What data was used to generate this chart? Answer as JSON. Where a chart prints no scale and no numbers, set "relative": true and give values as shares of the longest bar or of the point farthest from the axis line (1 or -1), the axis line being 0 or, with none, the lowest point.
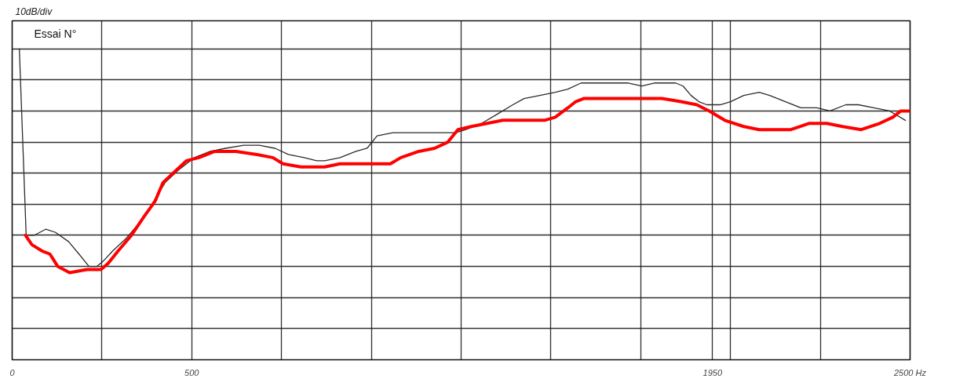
{
  "chart_data": {
    "type": "line",
    "ylabel": "10dB/div",
    "annotations": [
      "Essai N°"
    ],
    "relative": true,
    "grid": true,
    "line_style": "solid",
    "xlim": [
      0,
      2500
    ],
    "xticks": [
      0,
      {
        "value": 250,
        "label": null
      },
      500,
      {
        "value": 750,
        "label": null
      },
      {
        "value": 1000,
        "label": null
      },
      {
        "value": 1250,
        "label": null
      },
      {
        "value": 1500,
        "label": null
      },
      {
        "value": 1750,
        "label": null
      },
      1950,
      {
        "value": 2000,
        "label": null
      },
      {
        "value": 2250,
        "label": null
      },
      {
        "value": 2500,
        "label": "2500 Hz"
      }
    ],
    "series": [
      {
        "color": "#2b2b2b",
        "x": [
          20,
          39,
          61,
          94,
          120,
          157,
          186,
          214,
          236,
          256,
          280,
          317,
          354,
          389,
          426,
          463,
          507,
          551,
          594,
          645,
          688,
          732,
          769,
          813,
          848,
          870,
          913,
          957,
          988,
          1016,
          1060,
          1119,
          1163,
          1191,
          1235,
          1263,
          1307,
          1351,
          1394,
          1425,
          1469,
          1512,
          1547,
          1584,
          1628,
          1687,
          1715,
          1753,
          1788,
          1847,
          1868,
          1890,
          1912,
          1934,
          1971,
          2000,
          2037,
          2080,
          2109,
          2153,
          2196,
          2240,
          2277,
          2321,
          2356,
          2399,
          2443,
          2487
        ],
        "values": [
          1.0,
          0.4,
          0.4,
          0.42,
          0.41,
          0.38,
          0.34,
          0.3,
          0.3,
          0.32,
          0.35,
          0.39,
          0.44,
          0.5,
          0.57,
          0.61,
          0.65,
          0.67,
          0.68,
          0.69,
          0.69,
          0.68,
          0.66,
          0.65,
          0.64,
          0.64,
          0.65,
          0.67,
          0.68,
          0.72,
          0.73,
          0.73,
          0.73,
          0.73,
          0.73,
          0.74,
          0.76,
          0.79,
          0.82,
          0.84,
          0.85,
          0.86,
          0.87,
          0.89,
          0.89,
          0.89,
          0.89,
          0.88,
          0.89,
          0.89,
          0.88,
          0.85,
          0.83,
          0.82,
          0.82,
          0.83,
          0.85,
          0.86,
          0.85,
          0.83,
          0.81,
          0.81,
          0.8,
          0.82,
          0.82,
          0.81,
          0.8,
          0.77
        ]
      },
      {
        "color": "#ff0000",
        "x": [
          37,
          55,
          83,
          105,
          116,
          127,
          160,
          208,
          247,
          267,
          295,
          332,
          367,
          398,
          420,
          448,
          485,
          520,
          564,
          623,
          682,
          726,
          754,
          804,
          870,
          913,
          988,
          1053,
          1082,
          1132,
          1176,
          1213,
          1241,
          1278,
          1322,
          1366,
          1425,
          1482,
          1512,
          1547,
          1569,
          1591,
          1643,
          1694,
          1753,
          1809,
          1862,
          1906,
          1941,
          1984,
          2037,
          2080,
          2115,
          2168,
          2218,
          2268,
          2312,
          2364,
          2415,
          2452,
          2474,
          2496
        ],
        "values": [
          0.4,
          0.37,
          0.35,
          0.34,
          0.32,
          0.3,
          0.28,
          0.29,
          0.29,
          0.31,
          0.35,
          0.4,
          0.46,
          0.51,
          0.57,
          0.6,
          0.64,
          0.65,
          0.67,
          0.67,
          0.66,
          0.65,
          0.63,
          0.62,
          0.62,
          0.63,
          0.63,
          0.63,
          0.65,
          0.67,
          0.68,
          0.7,
          0.74,
          0.75,
          0.76,
          0.77,
          0.77,
          0.77,
          0.78,
          0.81,
          0.83,
          0.84,
          0.84,
          0.84,
          0.84,
          0.84,
          0.83,
          0.82,
          0.8,
          0.77,
          0.75,
          0.74,
          0.74,
          0.74,
          0.76,
          0.76,
          0.75,
          0.74,
          0.76,
          0.78,
          0.8,
          0.8
        ]
      }
    ]
  }
}
